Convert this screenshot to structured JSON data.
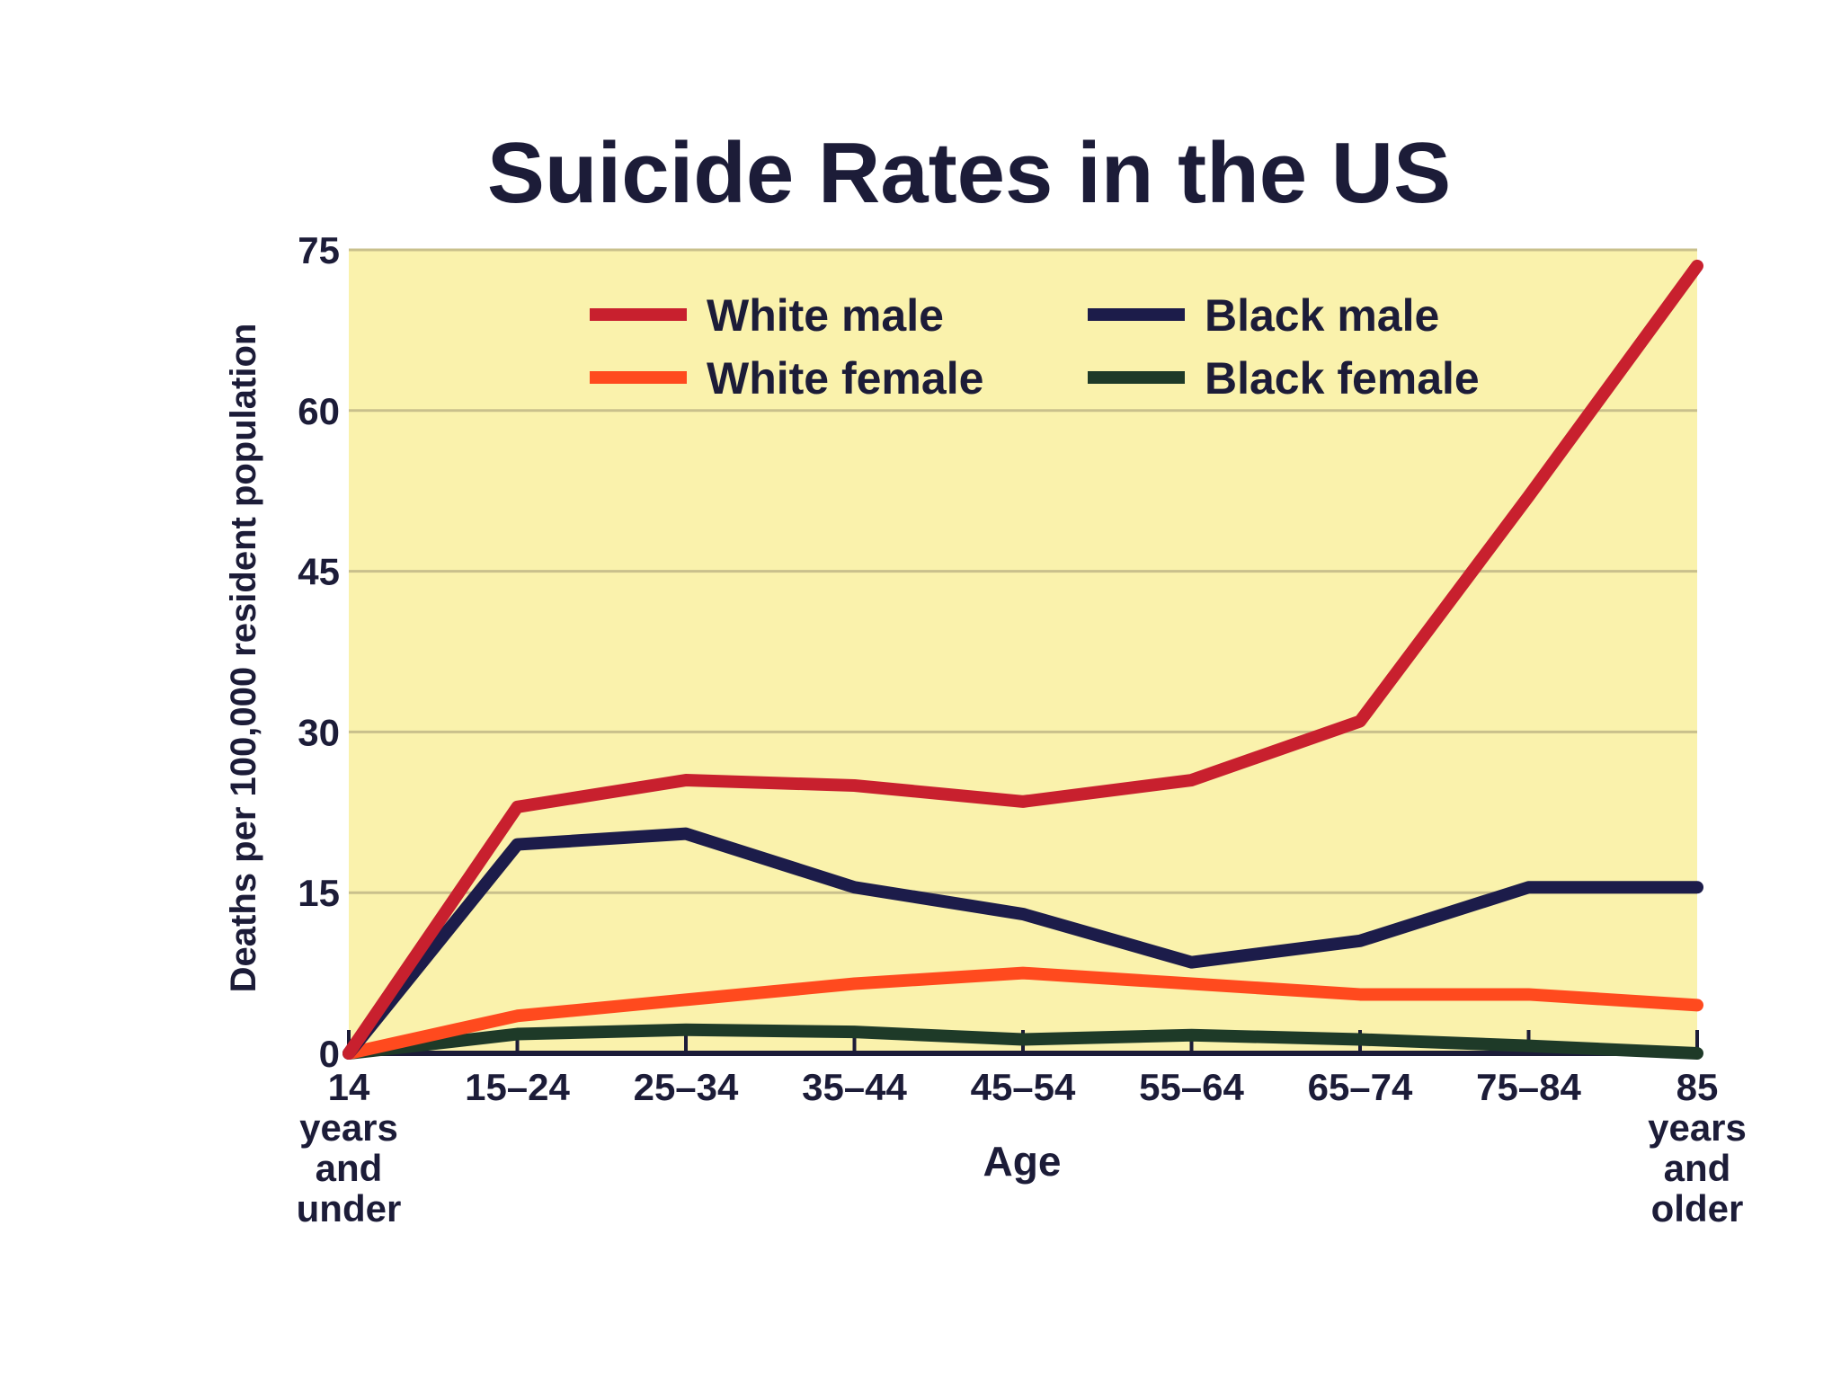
{
  "chart_data": {
    "type": "line",
    "title": "Suicide Rates in the US",
    "xlabel": "Age",
    "ylabel": "Deaths per 100,000 resident population",
    "categories": [
      [
        "14",
        "years",
        "and",
        "under"
      ],
      [
        "15–24"
      ],
      [
        "25–34"
      ],
      [
        "35–44"
      ],
      [
        "45–54"
      ],
      [
        "55–64"
      ],
      [
        "65–74"
      ],
      [
        "75–84"
      ],
      [
        "85",
        "years",
        "and",
        "older"
      ]
    ],
    "ylim": [
      0,
      75
    ],
    "yticks": [
      0,
      15,
      30,
      45,
      60,
      75
    ],
    "grid": true,
    "legend_position": "top",
    "background_color": "#faf2ac",
    "series": [
      {
        "name": "White male",
        "color": "#c8202e",
        "values": [
          0,
          23,
          25.5,
          25,
          23.5,
          25.5,
          31,
          52,
          73.5
        ]
      },
      {
        "name": "Black male",
        "color": "#1c1c4a",
        "values": [
          0,
          19.5,
          20.5,
          15.5,
          13,
          8.5,
          10.5,
          15.5,
          15.5
        ]
      },
      {
        "name": "White female",
        "color": "#ff4a1e",
        "values": [
          0,
          3.5,
          5,
          6.5,
          7.5,
          6.5,
          5.5,
          5.5,
          4.5
        ]
      },
      {
        "name": "Black female",
        "color": "#1e3a28",
        "values": [
          0,
          1.8,
          2.2,
          2,
          1.3,
          1.7,
          1.3,
          0.7,
          0
        ]
      }
    ]
  }
}
